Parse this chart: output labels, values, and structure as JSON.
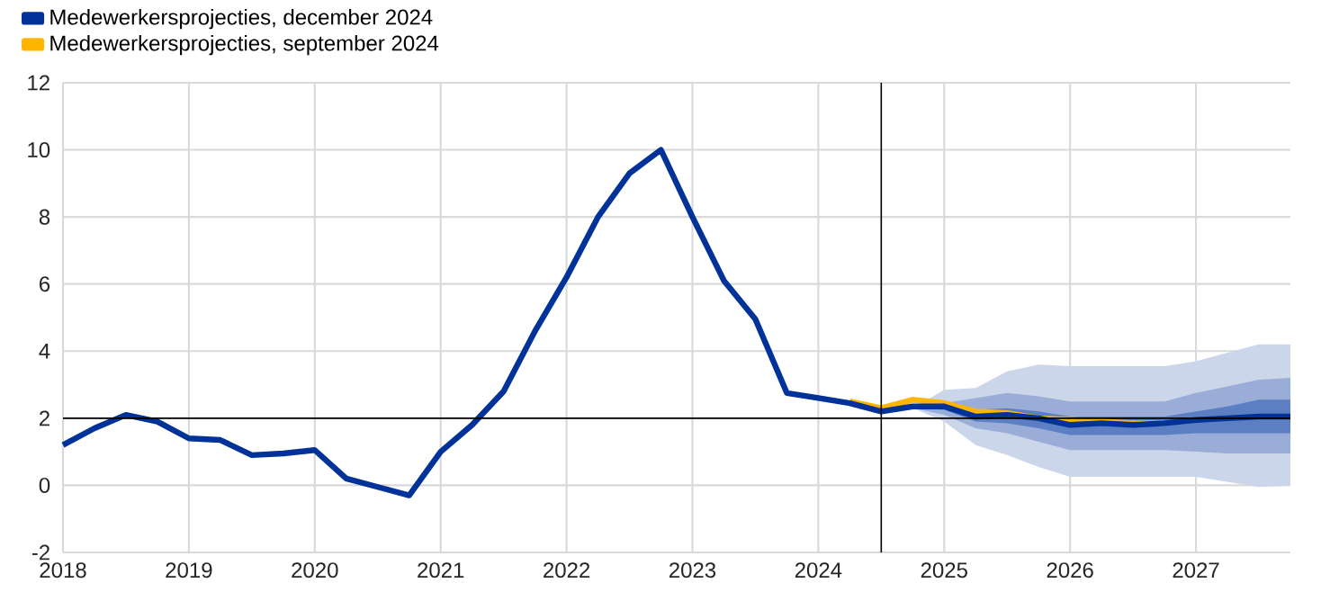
{
  "chart_data": {
    "type": "line",
    "xlim": [
      2018,
      2027.75
    ],
    "ylim": [
      -2,
      12
    ],
    "xticks": [
      2018,
      2019,
      2020,
      2021,
      2022,
      2023,
      2024,
      2025,
      2026,
      2027
    ],
    "yticks": [
      -2,
      0,
      2,
      4,
      6,
      8,
      10,
      12
    ],
    "grid": true,
    "legend": "top left",
    "ref_lines": [
      {
        "axis": "y",
        "value": 2,
        "color": "#000000"
      },
      {
        "axis": "x",
        "value": 2024.5,
        "color": "#000000"
      }
    ],
    "series": [
      {
        "color": "#ccd6ea",
        "x": [
          2024.75,
          2025,
          2025.25,
          2025.5,
          2025.75,
          2026,
          2026.25,
          2026.5,
          2026.75,
          2027,
          2027.25,
          2027.5,
          2027.75
        ],
        "values": [
          null,
          null,
          null,
          null,
          null,
          null,
          null,
          null,
          null,
          null,
          null,
          null,
          null
        ],
        "lower": [
          2.3,
          1.9,
          1.2,
          0.9,
          0.55,
          0.25,
          0.25,
          0.25,
          0.25,
          0.25,
          0.1,
          -0.05,
          0.0
        ],
        "upper": [
          2.3,
          2.85,
          2.9,
          3.4,
          3.6,
          3.55,
          3.55,
          3.55,
          3.55,
          3.7,
          3.95,
          4.2,
          4.2
        ]
      },
      {
        "color": "#99add6",
        "x": [
          2024.75,
          2025,
          2025.25,
          2025.5,
          2025.75,
          2026,
          2026.25,
          2026.5,
          2026.75,
          2027,
          2027.25,
          2027.5,
          2027.75
        ],
        "values": [
          null,
          null,
          null,
          null,
          null,
          null,
          null,
          null,
          null,
          null,
          null,
          null,
          null
        ],
        "lower": [
          2.3,
          2.1,
          1.7,
          1.55,
          1.3,
          1.05,
          1.05,
          1.05,
          1.05,
          1.0,
          0.95,
          0.95,
          0.95
        ],
        "upper": [
          2.3,
          2.45,
          2.6,
          2.75,
          2.65,
          2.5,
          2.5,
          2.5,
          2.5,
          2.75,
          2.95,
          3.15,
          3.2
        ]
      },
      {
        "color": "#5c7fc4",
        "x": [
          2024.75,
          2025,
          2025.25,
          2025.5,
          2025.75,
          2026,
          2026.25,
          2026.5,
          2026.75,
          2027,
          2027.25,
          2027.5,
          2027.75
        ],
        "values": [
          null,
          null,
          null,
          null,
          null,
          null,
          null,
          null,
          null,
          null,
          null,
          null,
          null
        ],
        "lower": [
          2.3,
          2.25,
          1.9,
          1.85,
          1.7,
          1.5,
          1.5,
          1.5,
          1.5,
          1.55,
          1.55,
          1.55,
          1.55
        ],
        "upper": [
          2.3,
          2.35,
          2.25,
          2.3,
          2.2,
          2.05,
          2.05,
          2.05,
          2.05,
          2.2,
          2.35,
          2.55,
          2.55
        ]
      },
      {
        "name": "Medewerkersprojecties, september 2024",
        "color": "#ffb400",
        "x": [
          2024.25,
          2024.5,
          2024.75,
          2025,
          2025.25,
          2025.5,
          2025.75,
          2026,
          2026.25,
          2026.5,
          2026.75
        ],
        "values": [
          2.5,
          2.3,
          2.55,
          2.45,
          2.2,
          2.15,
          2.0,
          1.95,
          1.9,
          1.85,
          1.85
        ]
      },
      {
        "name": "Medewerkersprojecties, december 2024",
        "color": "#003299",
        "x": [
          2018,
          2018.25,
          2018.5,
          2018.75,
          2019,
          2019.25,
          2019.5,
          2019.75,
          2020,
          2020.25,
          2020.5,
          2020.75,
          2021,
          2021.25,
          2021.5,
          2021.75,
          2022,
          2022.25,
          2022.5,
          2022.75,
          2023,
          2023.25,
          2023.5,
          2023.75,
          2024,
          2024.25,
          2024.5,
          2024.75,
          2025,
          2025.25,
          2025.5,
          2025.75,
          2026,
          2026.25,
          2026.5,
          2026.75,
          2027,
          2027.25,
          2027.5,
          2027.75
        ],
        "values": [
          1.2,
          1.7,
          2.1,
          1.9,
          1.4,
          1.35,
          0.9,
          0.95,
          1.05,
          0.2,
          -0.05,
          -0.3,
          1.0,
          1.8,
          2.8,
          4.6,
          6.2,
          8.0,
          9.3,
          10.0,
          8.0,
          6.1,
          4.95,
          2.75,
          2.6,
          2.45,
          2.2,
          2.35,
          2.35,
          2.05,
          2.1,
          2.0,
          1.8,
          1.85,
          1.8,
          1.85,
          1.95,
          2.0,
          2.05,
          2.05
        ]
      }
    ]
  }
}
